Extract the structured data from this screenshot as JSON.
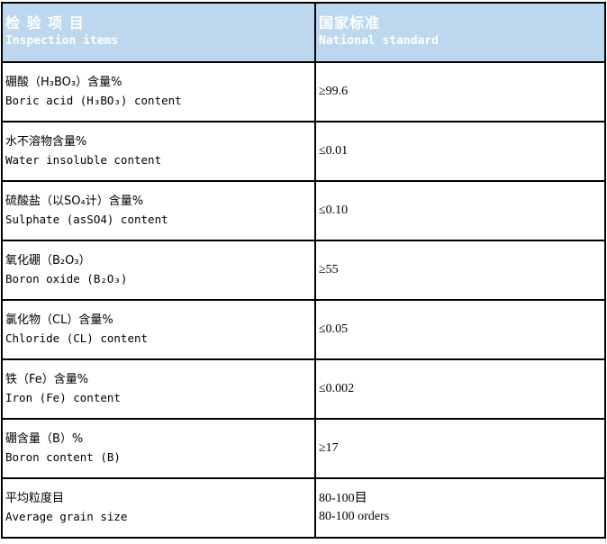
{
  "header": {
    "item_zh": "检 验 项 目",
    "item_en": "Inspection items",
    "std_zh": "国家标准",
    "std_en": "National standard",
    "bg_color": "#BDD7EE"
  },
  "rows": [
    {
      "zh": "硼酸（H₃BO₃）含量%",
      "en": "Boric acid (H₃BO₃) content",
      "value": "≥99.6"
    },
    {
      "zh": "水不溶物含量%",
      "en": "Water insoluble content",
      "value": "≤0.01"
    },
    {
      "zh": "硫酸盐（以SO₄计）含量%",
      "en": "Sulphate (asSO4) content",
      "value": "≤0.10"
    },
    {
      "zh": "氧化硼（B₂O₃）",
      "en": "Boron oxide (B₂O₃)",
      "value": "≥55"
    },
    {
      "zh": "氯化物（CL）含量%",
      "en": "Chloride (CL) content",
      "value": "≤0.05"
    },
    {
      "zh": "铁（Fe）含量%",
      "en": "Iron (Fe) content",
      "value": "≤0.002"
    },
    {
      "zh": "硼含量（B）%",
      "en": "Boron content (B)",
      "value": "≥17"
    },
    {
      "zh": "平均粒度目",
      "en": "Average grain size",
      "value": "80-100目",
      "value2": "80-100 orders"
    }
  ]
}
